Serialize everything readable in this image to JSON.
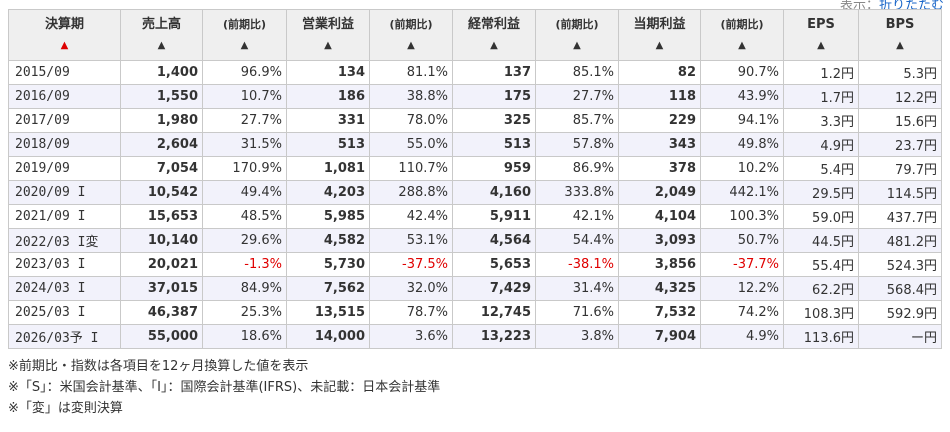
{
  "top_link": {
    "prefix": "表示：",
    "link": "折りたたむ"
  },
  "headers": [
    {
      "label": "決算期",
      "small": false,
      "arrow": "▲",
      "active": true
    },
    {
      "label": "売上高",
      "small": false,
      "arrow": "▲",
      "active": false
    },
    {
      "label": "(前期比)",
      "small": true,
      "arrow": "▲",
      "active": false
    },
    {
      "label": "営業利益",
      "small": false,
      "arrow": "▲",
      "active": false
    },
    {
      "label": "(前期比)",
      "small": true,
      "arrow": "▲",
      "active": false
    },
    {
      "label": "経常利益",
      "small": false,
      "arrow": "▲",
      "active": false
    },
    {
      "label": "(前期比)",
      "small": true,
      "arrow": "▲",
      "active": false
    },
    {
      "label": "当期利益",
      "small": false,
      "arrow": "▲",
      "active": false
    },
    {
      "label": "(前期比)",
      "small": true,
      "arrow": "▲",
      "active": false
    },
    {
      "label": "EPS",
      "small": false,
      "arrow": "▲",
      "active": false
    },
    {
      "label": "BPS",
      "small": false,
      "arrow": "▲",
      "active": false
    }
  ],
  "rows": [
    [
      "2015/09",
      "1,400",
      "96.9%",
      "134",
      "81.1%",
      "137",
      "85.1%",
      "82",
      "90.7%",
      "1.2円",
      "5.3円"
    ],
    [
      "2016/09",
      "1,550",
      "10.7%",
      "186",
      "38.8%",
      "175",
      "27.7%",
      "118",
      "43.9%",
      "1.7円",
      "12.2円"
    ],
    [
      "2017/09",
      "1,980",
      "27.7%",
      "331",
      "78.0%",
      "325",
      "85.7%",
      "229",
      "94.1%",
      "3.3円",
      "15.6円"
    ],
    [
      "2018/09",
      "2,604",
      "31.5%",
      "513",
      "55.0%",
      "513",
      "57.8%",
      "343",
      "49.8%",
      "4.9円",
      "23.7円"
    ],
    [
      "2019/09",
      "7,054",
      "170.9%",
      "1,081",
      "110.7%",
      "959",
      "86.9%",
      "378",
      "10.2%",
      "5.4円",
      "79.7円"
    ],
    [
      "2020/09 I",
      "10,542",
      "49.4%",
      "4,203",
      "288.8%",
      "4,160",
      "333.8%",
      "2,049",
      "442.1%",
      "29.5円",
      "114.5円"
    ],
    [
      "2021/09 I",
      "15,653",
      "48.5%",
      "5,985",
      "42.4%",
      "5,911",
      "42.1%",
      "4,104",
      "100.3%",
      "59.0円",
      "437.7円"
    ],
    [
      "2022/03 I変",
      "10,140",
      "29.6%",
      "4,582",
      "53.1%",
      "4,564",
      "54.4%",
      "3,093",
      "50.7%",
      "44.5円",
      "481.2円"
    ],
    [
      "2023/03 I",
      "20,021",
      "-1.3%",
      "5,730",
      "-37.5%",
      "5,653",
      "-38.1%",
      "3,856",
      "-37.7%",
      "55.4円",
      "524.3円"
    ],
    [
      "2024/03 I",
      "37,015",
      "84.9%",
      "7,562",
      "32.0%",
      "7,429",
      "31.4%",
      "4,325",
      "12.2%",
      "62.2円",
      "568.4円"
    ],
    [
      "2025/03 I",
      "46,387",
      "25.3%",
      "13,515",
      "78.7%",
      "12,745",
      "71.6%",
      "7,532",
      "74.2%",
      "108.3円",
      "592.9円"
    ],
    [
      "2026/03予 I",
      "55,000",
      "18.6%",
      "14,000",
      "3.6%",
      "13,223",
      "3.8%",
      "7,904",
      "4.9%",
      "113.6円",
      "ー円"
    ]
  ],
  "negative_color": "#e00000",
  "notes": [
    "※前期比・指数は各項目を12ヶ月換算した値を表示",
    "※「S」：米国会計基準、「I」：国際会計基準(IFRS)、未記載：日本会計基準",
    "※「変」は変則決算"
  ]
}
